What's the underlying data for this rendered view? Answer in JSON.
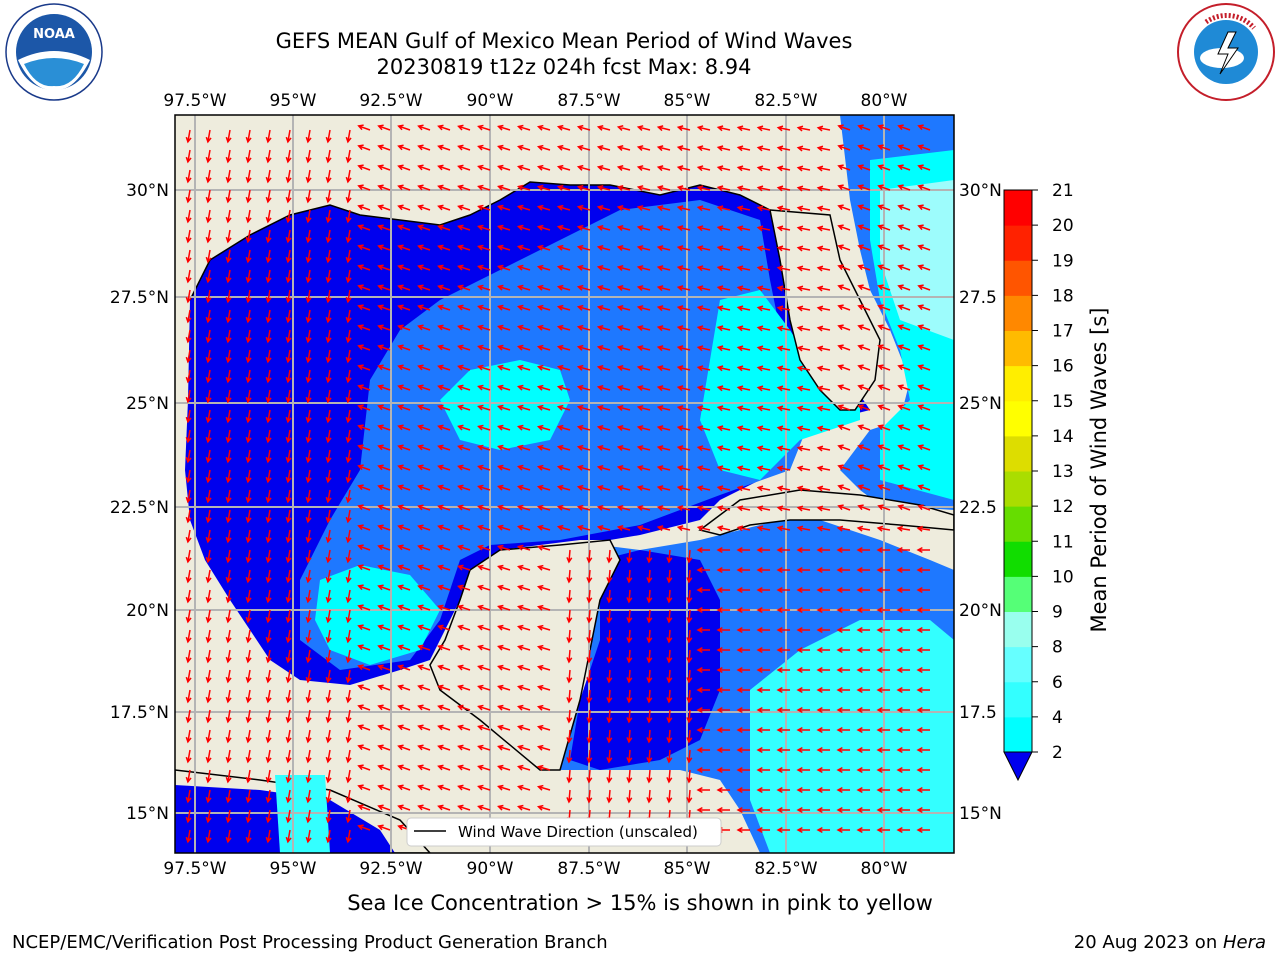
{
  "header": {
    "title_line1": "GEFS MEAN Gulf of Mexico Mean Period of Wind Waves",
    "title_line2": "20230819 t12z 024h fcst   Max: 8.94",
    "left_logo": "noaa-logo",
    "right_logo": "nws-logo"
  },
  "map": {
    "lon_ticks": [
      "97.5°W",
      "95°W",
      "92.5°W",
      "90°W",
      "87.5°W",
      "85°W",
      "82.5°W",
      "80°W"
    ],
    "lat_ticks_left": [
      "30°N",
      "27.5°N",
      "25°N",
      "22.5°N",
      "20°N",
      "17.5°N",
      "15°N"
    ],
    "lat_ticks_right": [
      "30°N",
      "27.5",
      "25°N",
      "22.5",
      "20°N",
      "17.5",
      "15°N"
    ],
    "legend_label": "Wind Wave Direction (unscaled)",
    "colors": {
      "land": "#eeecdd",
      "ocean_blue": "#0000ee",
      "mid_blue": "#1e78ff",
      "cyan": "#00ffff",
      "light_cyan": "#9dfcfc",
      "arrow": "#ff0000"
    }
  },
  "colorbar": {
    "label": "Mean Period of Wind Waves [s]",
    "tick_labels": [
      "2",
      "4",
      "6",
      "8",
      "9",
      "10",
      "11",
      "12",
      "13",
      "14",
      "15",
      "16",
      "17",
      "18",
      "19",
      "20",
      "21"
    ],
    "colors": [
      "#1e78ff",
      "#00ffff",
      "#33ffff",
      "#66ffff",
      "#99ffee",
      "#55ff77",
      "#11dd00",
      "#66dd00",
      "#aadd00",
      "#dddd00",
      "#ffff00",
      "#ffee00",
      "#ffbb00",
      "#ff8800",
      "#ff5500",
      "#ff2200",
      "#ff0000"
    ]
  },
  "footer": {
    "note": "Sea Ice Concentration > 15% is shown in pink to yellow",
    "left": "NCEP/EMC/Verification Post Processing Product Generation Branch",
    "right_date": "20 Aug 2023 on ",
    "right_machine": "Hera"
  }
}
